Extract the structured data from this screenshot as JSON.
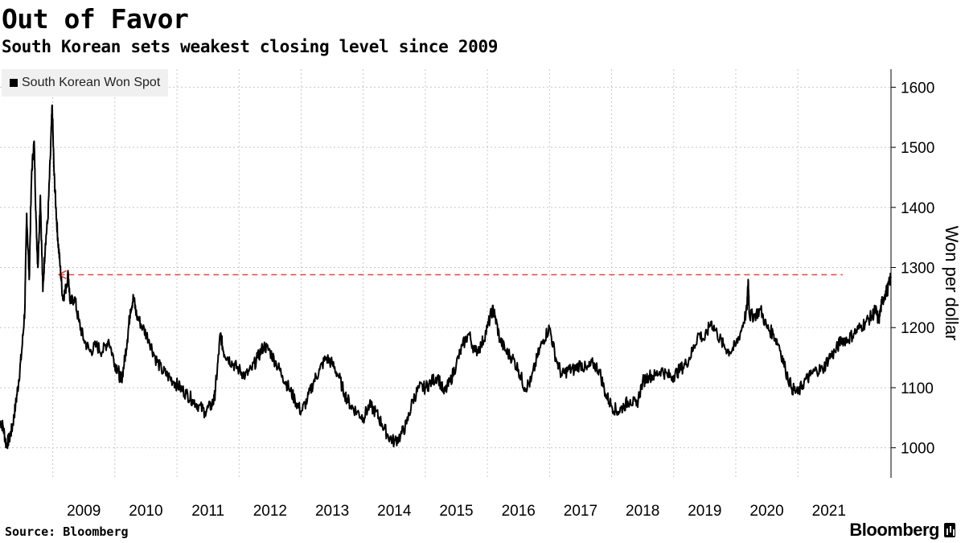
{
  "colors": {
    "line": "#000000",
    "reference": "#e8473f",
    "grid": "#c8c8c8"
  },
  "chart_data": {
    "type": "line",
    "title": "Out of Favor",
    "subtitle": "South Korean sets weakest closing level since 2009",
    "legend": [
      "South Korean Won Spot"
    ],
    "ylabel": "Won per dollar",
    "ylim": [
      950,
      1630
    ],
    "yticks": [
      1000,
      1100,
      1200,
      1300,
      1400,
      1500,
      1600
    ],
    "xlim": [
      2008.15,
      2022.0
    ],
    "xticks": [
      {
        "label": "2009",
        "value": 2009.0
      },
      {
        "label": "2010",
        "value": 2010.0
      },
      {
        "label": "2011",
        "value": 2011.0
      },
      {
        "label": "2012",
        "value": 2012.0
      },
      {
        "label": "2013",
        "value": 2013.0
      },
      {
        "label": "2014",
        "value": 2014.0
      },
      {
        "label": "2015",
        "value": 2015.0
      },
      {
        "label": "2016",
        "value": 2016.0
      },
      {
        "label": "2017",
        "value": 2017.0
      },
      {
        "label": "2018",
        "value": 2018.0
      },
      {
        "label": "2019",
        "value": 2019.0
      },
      {
        "label": "2020",
        "value": 2020.0
      },
      {
        "label": "2021",
        "value": 2021.0
      }
    ],
    "reference_line": {
      "value": 1288,
      "from": 2009.1,
      "to": 2021.72,
      "style": "dashed",
      "arrow": "left"
    },
    "series": [
      {
        "name": "South Korean Won Spot",
        "points": [
          [
            2008.15,
            1045
          ],
          [
            2008.2,
            1035
          ],
          [
            2008.25,
            1005
          ],
          [
            2008.3,
            1015
          ],
          [
            2008.35,
            1035
          ],
          [
            2008.4,
            1070
          ],
          [
            2008.45,
            1110
          ],
          [
            2008.5,
            1160
          ],
          [
            2008.55,
            1230
          ],
          [
            2008.58,
            1390
          ],
          [
            2008.62,
            1280
          ],
          [
            2008.66,
            1460
          ],
          [
            2008.7,
            1510
          ],
          [
            2008.73,
            1380
          ],
          [
            2008.76,
            1300
          ],
          [
            2008.8,
            1420
          ],
          [
            2008.84,
            1260
          ],
          [
            2008.88,
            1340
          ],
          [
            2008.92,
            1380
          ],
          [
            2008.96,
            1480
          ],
          [
            2008.99,
            1570
          ],
          [
            2009.02,
            1460
          ],
          [
            2009.05,
            1400
          ],
          [
            2009.08,
            1350
          ],
          [
            2009.12,
            1300
          ],
          [
            2009.16,
            1250
          ],
          [
            2009.2,
            1260
          ],
          [
            2009.25,
            1290
          ],
          [
            2009.28,
            1240
          ],
          [
            2009.35,
            1250
          ],
          [
            2009.42,
            1210
          ],
          [
            2009.5,
            1180
          ],
          [
            2009.6,
            1160
          ],
          [
            2009.7,
            1170
          ],
          [
            2009.8,
            1160
          ],
          [
            2009.9,
            1180
          ],
          [
            2010.0,
            1140
          ],
          [
            2010.05,
            1130
          ],
          [
            2010.1,
            1110
          ],
          [
            2010.15,
            1140
          ],
          [
            2010.2,
            1180
          ],
          [
            2010.25,
            1230
          ],
          [
            2010.3,
            1250
          ],
          [
            2010.35,
            1220
          ],
          [
            2010.45,
            1200
          ],
          [
            2010.55,
            1180
          ],
          [
            2010.65,
            1150
          ],
          [
            2010.75,
            1130
          ],
          [
            2010.85,
            1120
          ],
          [
            2010.95,
            1110
          ],
          [
            2011.05,
            1100
          ],
          [
            2011.15,
            1090
          ],
          [
            2011.25,
            1080
          ],
          [
            2011.35,
            1070
          ],
          [
            2011.45,
            1060
          ],
          [
            2011.55,
            1070
          ],
          [
            2011.6,
            1080
          ],
          [
            2011.65,
            1130
          ],
          [
            2011.7,
            1190
          ],
          [
            2011.75,
            1160
          ],
          [
            2011.82,
            1150
          ],
          [
            2011.9,
            1140
          ],
          [
            2012.0,
            1130
          ],
          [
            2012.1,
            1120
          ],
          [
            2012.2,
            1130
          ],
          [
            2012.3,
            1150
          ],
          [
            2012.4,
            1170
          ],
          [
            2012.5,
            1160
          ],
          [
            2012.6,
            1140
          ],
          [
            2012.7,
            1120
          ],
          [
            2012.8,
            1100
          ],
          [
            2012.9,
            1080
          ],
          [
            2013.0,
            1060
          ],
          [
            2013.1,
            1080
          ],
          [
            2013.2,
            1110
          ],
          [
            2013.3,
            1130
          ],
          [
            2013.4,
            1150
          ],
          [
            2013.5,
            1140
          ],
          [
            2013.6,
            1120
          ],
          [
            2013.7,
            1090
          ],
          [
            2013.8,
            1070
          ],
          [
            2013.9,
            1060
          ],
          [
            2014.0,
            1050
          ],
          [
            2014.1,
            1070
          ],
          [
            2014.2,
            1060
          ],
          [
            2014.3,
            1040
          ],
          [
            2014.4,
            1020
          ],
          [
            2014.5,
            1010
          ],
          [
            2014.6,
            1020
          ],
          [
            2014.7,
            1040
          ],
          [
            2014.8,
            1080
          ],
          [
            2014.9,
            1100
          ],
          [
            2015.0,
            1100
          ],
          [
            2015.1,
            1110
          ],
          [
            2015.2,
            1120
          ],
          [
            2015.3,
            1090
          ],
          [
            2015.4,
            1110
          ],
          [
            2015.5,
            1140
          ],
          [
            2015.6,
            1170
          ],
          [
            2015.7,
            1190
          ],
          [
            2015.8,
            1160
          ],
          [
            2015.9,
            1170
          ],
          [
            2016.0,
            1200
          ],
          [
            2016.08,
            1230
          ],
          [
            2016.12,
            1220
          ],
          [
            2016.2,
            1180
          ],
          [
            2016.3,
            1160
          ],
          [
            2016.4,
            1150
          ],
          [
            2016.5,
            1130
          ],
          [
            2016.6,
            1100
          ],
          [
            2016.7,
            1110
          ],
          [
            2016.8,
            1150
          ],
          [
            2016.9,
            1180
          ],
          [
            2017.0,
            1200
          ],
          [
            2017.1,
            1150
          ],
          [
            2017.2,
            1120
          ],
          [
            2017.3,
            1130
          ],
          [
            2017.4,
            1130
          ],
          [
            2017.5,
            1140
          ],
          [
            2017.6,
            1130
          ],
          [
            2017.7,
            1140
          ],
          [
            2017.8,
            1130
          ],
          [
            2017.9,
            1090
          ],
          [
            2018.0,
            1070
          ],
          [
            2018.1,
            1060
          ],
          [
            2018.2,
            1070
          ],
          [
            2018.3,
            1080
          ],
          [
            2018.4,
            1070
          ],
          [
            2018.5,
            1110
          ],
          [
            2018.6,
            1120
          ],
          [
            2018.7,
            1120
          ],
          [
            2018.8,
            1130
          ],
          [
            2018.9,
            1120
          ],
          [
            2019.0,
            1120
          ],
          [
            2019.1,
            1130
          ],
          [
            2019.2,
            1140
          ],
          [
            2019.3,
            1160
          ],
          [
            2019.4,
            1190
          ],
          [
            2019.5,
            1180
          ],
          [
            2019.6,
            1210
          ],
          [
            2019.7,
            1190
          ],
          [
            2019.8,
            1170
          ],
          [
            2019.9,
            1160
          ],
          [
            2020.0,
            1170
          ],
          [
            2020.1,
            1200
          ],
          [
            2020.18,
            1230
          ],
          [
            2020.2,
            1280
          ],
          [
            2020.22,
            1220
          ],
          [
            2020.3,
            1220
          ],
          [
            2020.4,
            1230
          ],
          [
            2020.5,
            1200
          ],
          [
            2020.6,
            1190
          ],
          [
            2020.7,
            1170
          ],
          [
            2020.8,
            1130
          ],
          [
            2020.9,
            1100
          ],
          [
            2021.0,
            1090
          ],
          [
            2021.1,
            1110
          ],
          [
            2021.2,
            1120
          ],
          [
            2021.3,
            1130
          ],
          [
            2021.4,
            1130
          ],
          [
            2021.5,
            1150
          ],
          [
            2021.6,
            1160
          ],
          [
            2021.7,
            1180
          ],
          [
            2021.8,
            1180
          ],
          [
            2021.9,
            1190
          ],
          [
            2022.0,
            1200
          ],
          [
            2022.1,
            1210
          ],
          [
            2022.2,
            1220
          ],
          [
            2022.25,
            1230
          ],
          [
            2022.3,
            1210
          ],
          [
            2022.35,
            1240
          ],
          [
            2022.4,
            1255
          ],
          [
            2022.45,
            1265
          ],
          [
            2022.5,
            1285
          ]
        ]
      }
    ]
  },
  "footer": {
    "source": "Source: Bloomberg",
    "brand": "Bloomberg"
  }
}
